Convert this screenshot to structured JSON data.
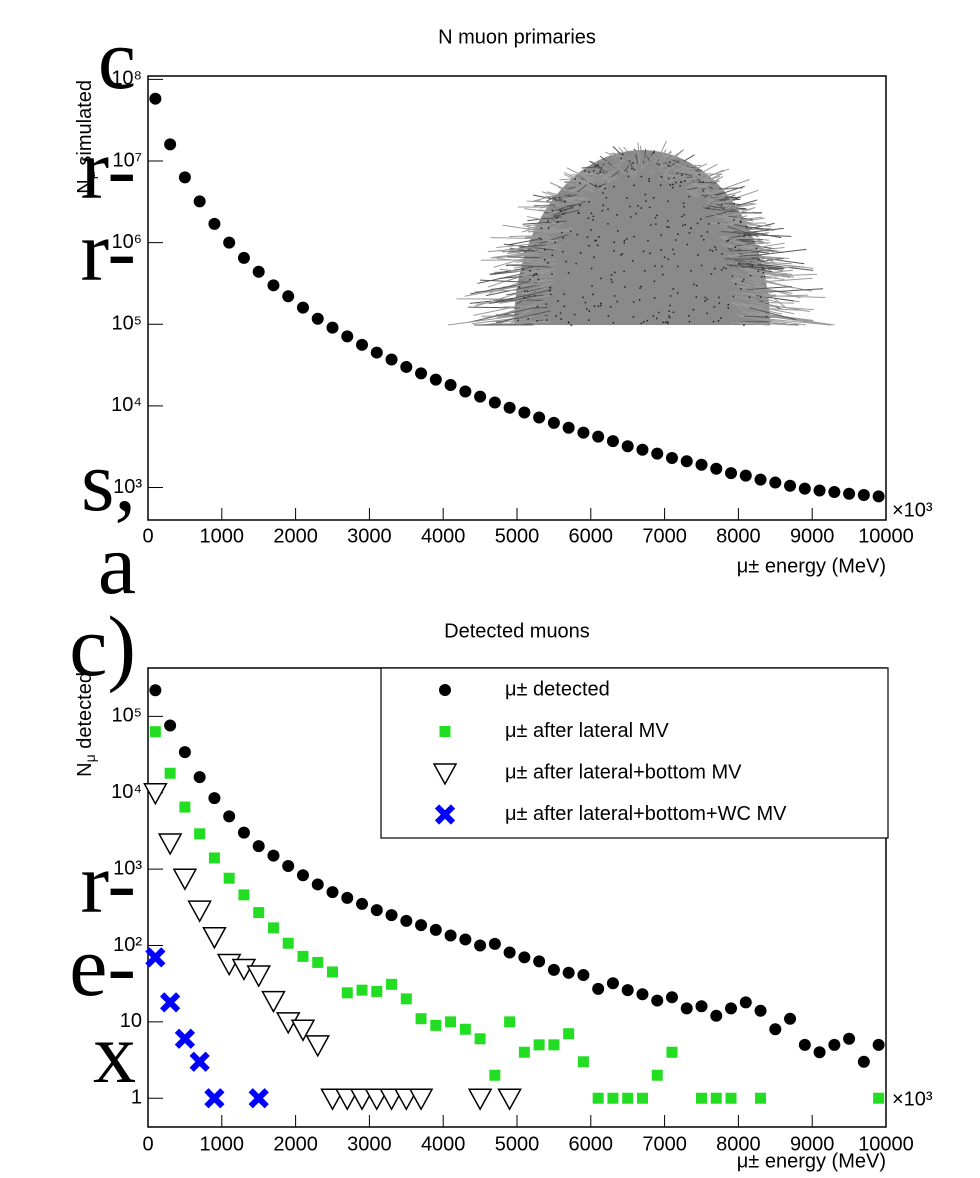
{
  "side_text": [
    "c",
    "r-",
    "r-",
    "s,",
    "a",
    "c)",
    "r-",
    "e-",
    "x"
  ],
  "chart_data": [
    {
      "type": "scatter",
      "title": "N muon primaries",
      "x_label": "μ± energy (MeV)",
      "x_exponent": "×10³",
      "y_label_symbol": "N",
      "y_label_subscript": "μ",
      "y_label_text": " simulated",
      "log_y": true,
      "xlim": [
        0,
        10000
      ],
      "ylim": [
        400,
        110000000
      ],
      "xticks": [
        0,
        1000,
        2000,
        3000,
        4000,
        5000,
        6000,
        7000,
        8000,
        9000,
        10000
      ],
      "yticks": [
        {
          "value": 1000,
          "label": "10³"
        },
        {
          "value": 10000,
          "label": "10⁴"
        },
        {
          "value": 100000,
          "label": "10⁵"
        },
        {
          "value": 1000000,
          "label": "10⁶"
        },
        {
          "value": 10000000,
          "label": "10⁷"
        },
        {
          "value": 100000000,
          "label": "10⁸"
        }
      ],
      "x": [
        100,
        300,
        500,
        700,
        900,
        1100,
        1300,
        1500,
        1700,
        1900,
        2100,
        2300,
        2500,
        2700,
        2900,
        3100,
        3300,
        3500,
        3700,
        3900,
        4100,
        4300,
        4500,
        4700,
        4900,
        5100,
        5300,
        5500,
        5700,
        5900,
        6100,
        6300,
        6500,
        6700,
        6900,
        7100,
        7300,
        7500,
        7700,
        7900,
        8100,
        8300,
        8500,
        8700,
        8900,
        9100,
        9300,
        9500,
        9700,
        9900
      ],
      "values": [
        58000000,
        16000000,
        6300000,
        3200000,
        1700000,
        1000000,
        650000,
        440000,
        300000,
        220000,
        160000,
        117000,
        91000,
        71000,
        56000,
        45000,
        37000,
        30000,
        25000,
        21000,
        18000,
        15000,
        13000,
        11000,
        9500,
        8300,
        7200,
        6200,
        5400,
        4700,
        4200,
        3700,
        3200,
        2900,
        2600,
        2300,
        2100,
        1900,
        1700,
        1500,
        1400,
        1250,
        1150,
        1050,
        970,
        920,
        880,
        840,
        810,
        780
      ],
      "color": "#000000",
      "marker": "circle"
    },
    {
      "type": "scatter",
      "title": "Detected muons",
      "x_label": "μ± energy (MeV)",
      "x_exponent": "×10³",
      "y_label_symbol": "N",
      "y_label_subscript": "μ",
      "y_label_text": " detected",
      "log_y": true,
      "xlim": [
        0,
        10000
      ],
      "ylim": [
        0.42,
        430000
      ],
      "xticks": [
        0,
        1000,
        2000,
        3000,
        4000,
        5000,
        6000,
        7000,
        8000,
        9000,
        10000
      ],
      "yticks": [
        1,
        10,
        {
          "value": 100,
          "label": "10²"
        },
        {
          "value": 1000,
          "label": "10³"
        },
        {
          "value": 10000,
          "label": "10⁴"
        },
        {
          "value": 100000,
          "label": "10⁵"
        }
      ],
      "legend": "top-right",
      "x": [
        100,
        300,
        500,
        700,
        900,
        1100,
        1300,
        1500,
        1700,
        1900,
        2100,
        2300,
        2500,
        2700,
        2900,
        3100,
        3300,
        3500,
        3700,
        3900,
        4100,
        4300,
        4500,
        4700,
        4900,
        5100,
        5300,
        5500,
        5700,
        5900,
        6100,
        6300,
        6500,
        6700,
        6900,
        7100,
        7300,
        7500,
        7700,
        7900,
        8100,
        8300,
        8500,
        8700,
        8900,
        9100,
        9300,
        9500,
        9700,
        9900
      ],
      "series": [
        {
          "name": "μ± detected",
          "color": "#000000",
          "marker": "circle",
          "values": [
            220000,
            76000,
            34000,
            16000,
            8500,
            4900,
            3000,
            2000,
            1500,
            1100,
            830,
            630,
            500,
            420,
            350,
            290,
            250,
            210,
            185,
            160,
            135,
            120,
            100,
            105,
            81,
            70,
            62,
            48,
            44,
            41,
            27,
            32,
            26,
            23,
            19,
            21,
            15,
            16,
            12,
            15,
            18,
            14,
            8,
            11,
            5,
            4,
            5,
            6,
            3,
            5
          ]
        },
        {
          "name": "μ± after lateral MV",
          "color": "#22dd22",
          "marker": "square",
          "values": [
            63000,
            18000,
            6500,
            2900,
            1400,
            760,
            460,
            270,
            170,
            107,
            72,
            60,
            45,
            24,
            26,
            25,
            31,
            20,
            11,
            9,
            10,
            8,
            6,
            2,
            10,
            4,
            5,
            5,
            7,
            3,
            1,
            1,
            1,
            1,
            2,
            4,
            null,
            1,
            1,
            1,
            null,
            1,
            null,
            null,
            null,
            null,
            null,
            null,
            null,
            1
          ]
        },
        {
          "name": "μ± after lateral+bottom MV",
          "color": "#000000",
          "marker": "triangle-down",
          "values": [
            10000,
            2200,
            760,
            290,
            130,
            58,
            50,
            41,
            19,
            10,
            8,
            5,
            1,
            1,
            1,
            1,
            1,
            1,
            1,
            null,
            null,
            null,
            1,
            null,
            1,
            null,
            null,
            null,
            null,
            null,
            null,
            null,
            null,
            null,
            null,
            null,
            null,
            null,
            null,
            null,
            null,
            null,
            null,
            null,
            null,
            null,
            null,
            null,
            null,
            null
          ]
        },
        {
          "name": "μ± after lateral+bottom+WC MV",
          "color": "#0000ff",
          "marker": "x",
          "values": [
            70,
            18,
            6,
            3,
            1,
            null,
            null,
            1,
            null,
            null,
            null,
            null,
            null,
            null,
            null,
            null,
            null,
            null,
            null,
            null,
            null,
            null,
            null,
            null,
            null,
            null,
            null,
            null,
            null,
            null,
            null,
            null,
            null,
            null,
            null,
            null,
            null,
            null,
            null,
            null,
            null,
            null,
            null,
            null,
            null,
            null,
            null,
            null,
            null,
            null
          ]
        }
      ]
    }
  ]
}
